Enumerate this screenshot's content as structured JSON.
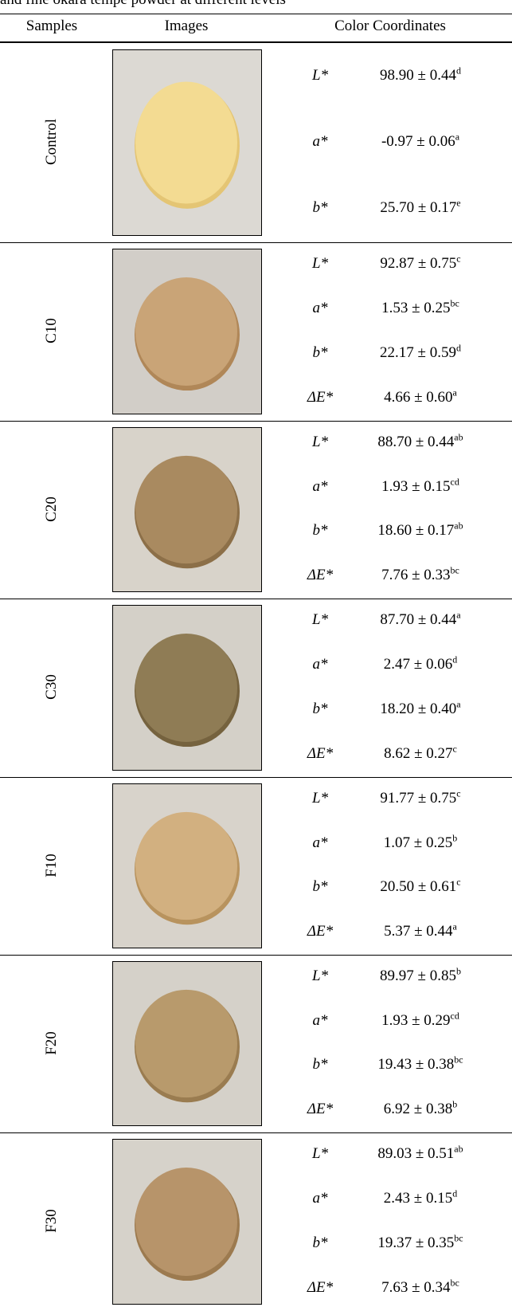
{
  "caption": "and fine okara tempe powder at different levels",
  "header": [
    "Samples",
    "Images",
    "Color Coordinates"
  ],
  "rows": [
    {
      "sample": "Control",
      "coords": [
        {
          "name": "L*",
          "value": "98.90 ± 0.44",
          "sup": "d"
        },
        {
          "name": "a*",
          "value": "-0.97 ± 0.06",
          "sup": "a"
        },
        {
          "name": "b*",
          "value": "25.70 ± 0.17",
          "sup": "e"
        }
      ]
    },
    {
      "sample": "C10",
      "coords": [
        {
          "name": "L*",
          "value": "92.87 ± 0.75",
          "sup": "c"
        },
        {
          "name": "a*",
          "value": "1.53 ± 0.25",
          "sup": "bc"
        },
        {
          "name": "b*",
          "value": "22.17 ± 0.59",
          "sup": "d"
        },
        {
          "name": "ΔE*",
          "value": "4.66 ± 0.60",
          "sup": "a"
        }
      ]
    },
    {
      "sample": "C20",
      "coords": [
        {
          "name": "L*",
          "value": "88.70 ± 0.44",
          "sup": "ab"
        },
        {
          "name": "a*",
          "value": "1.93 ± 0.15",
          "sup": "cd"
        },
        {
          "name": "b*",
          "value": "18.60 ± 0.17",
          "sup": "ab"
        },
        {
          "name": "ΔE*",
          "value": "7.76 ± 0.33",
          "sup": "bc"
        }
      ]
    },
    {
      "sample": "C30",
      "coords": [
        {
          "name": "L*",
          "value": "87.70 ± 0.44",
          "sup": "a"
        },
        {
          "name": "a*",
          "value": "2.47 ± 0.06",
          "sup": "d"
        },
        {
          "name": "b*",
          "value": "18.20 ± 0.40",
          "sup": "a"
        },
        {
          "name": "ΔE*",
          "value": "8.62 ± 0.27",
          "sup": "c"
        }
      ]
    },
    {
      "sample": "F10",
      "coords": [
        {
          "name": "L*",
          "value": "91.77 ± 0.75",
          "sup": "c"
        },
        {
          "name": "a*",
          "value": "1.07 ± 0.25",
          "sup": "b"
        },
        {
          "name": "b*",
          "value": "20.50 ± 0.61",
          "sup": "c"
        },
        {
          "name": "ΔE*",
          "value": "5.37 ± 0.44",
          "sup": "a"
        }
      ]
    },
    {
      "sample": "F20",
      "coords": [
        {
          "name": "L*",
          "value": "89.97 ± 0.85",
          "sup": "b"
        },
        {
          "name": "a*",
          "value": "1.93 ± 0.29",
          "sup": "cd"
        },
        {
          "name": "b*",
          "value": "19.43 ± 0.38",
          "sup": "bc"
        },
        {
          "name": "ΔE*",
          "value": "6.92 ± 0.38",
          "sup": "b"
        }
      ]
    },
    {
      "sample": "F30",
      "coords": [
        {
          "name": "L*",
          "value": "89.03 ± 0.51",
          "sup": "ab"
        },
        {
          "name": "a*",
          "value": "2.43 ± 0.15",
          "sup": "d"
        },
        {
          "name": "b*",
          "value": "19.37 ± 0.35",
          "sup": "bc"
        },
        {
          "name": "ΔE*",
          "value": "7.63 ± 0.34",
          "sup": "bc"
        }
      ]
    }
  ]
}
